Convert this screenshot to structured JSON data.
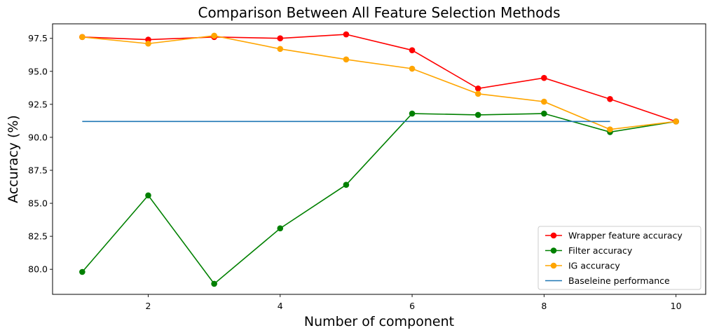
{
  "chart_data": {
    "type": "line",
    "title": "Comparison Between All Feature Selection Methods",
    "xlabel": "Number of component",
    "ylabel": "Accuracy (%)",
    "xlim": [
      0.55,
      10.45
    ],
    "ylim": [
      78.1,
      98.6
    ],
    "xticks": [
      2,
      4,
      6,
      8,
      10
    ],
    "yticks": [
      80.0,
      82.5,
      85.0,
      87.5,
      90.0,
      92.5,
      95.0,
      97.5
    ],
    "xtick_labels": [
      "2",
      "4",
      "6",
      "8",
      "10"
    ],
    "ytick_labels": [
      "80.0",
      "82.5",
      "85.0",
      "87.5",
      "90.0",
      "92.5",
      "95.0",
      "97.5"
    ],
    "grid": false,
    "legend_position": "lower-right",
    "series": [
      {
        "name": "Wrapper feature accuracy",
        "color": "#ff0000",
        "marker": "circle",
        "x": [
          1,
          2,
          3,
          4,
          5,
          6,
          7,
          8,
          9,
          10
        ],
        "values": [
          97.6,
          97.4,
          97.6,
          97.5,
          97.8,
          96.6,
          93.7,
          94.5,
          92.9,
          91.2
        ]
      },
      {
        "name": "Filter accuracy",
        "color": "#008000",
        "marker": "circle",
        "x": [
          1,
          2,
          3,
          4,
          5,
          6,
          7,
          8,
          9,
          10
        ],
        "values": [
          79.8,
          85.6,
          78.9,
          83.1,
          86.4,
          91.8,
          91.7,
          91.8,
          90.4,
          91.2
        ]
      },
      {
        "name": "IG accuracy",
        "color": "#ffa500",
        "marker": "circle",
        "x": [
          1,
          2,
          3,
          4,
          5,
          6,
          7,
          8,
          9,
          10
        ],
        "values": [
          97.6,
          97.1,
          97.7,
          96.7,
          95.9,
          95.2,
          93.3,
          92.7,
          90.6,
          91.2
        ]
      },
      {
        "name": "Baseleine performance",
        "color": "#1f77b4",
        "marker": "none",
        "x": [
          1,
          9
        ],
        "values": [
          91.2,
          91.2
        ]
      }
    ]
  }
}
